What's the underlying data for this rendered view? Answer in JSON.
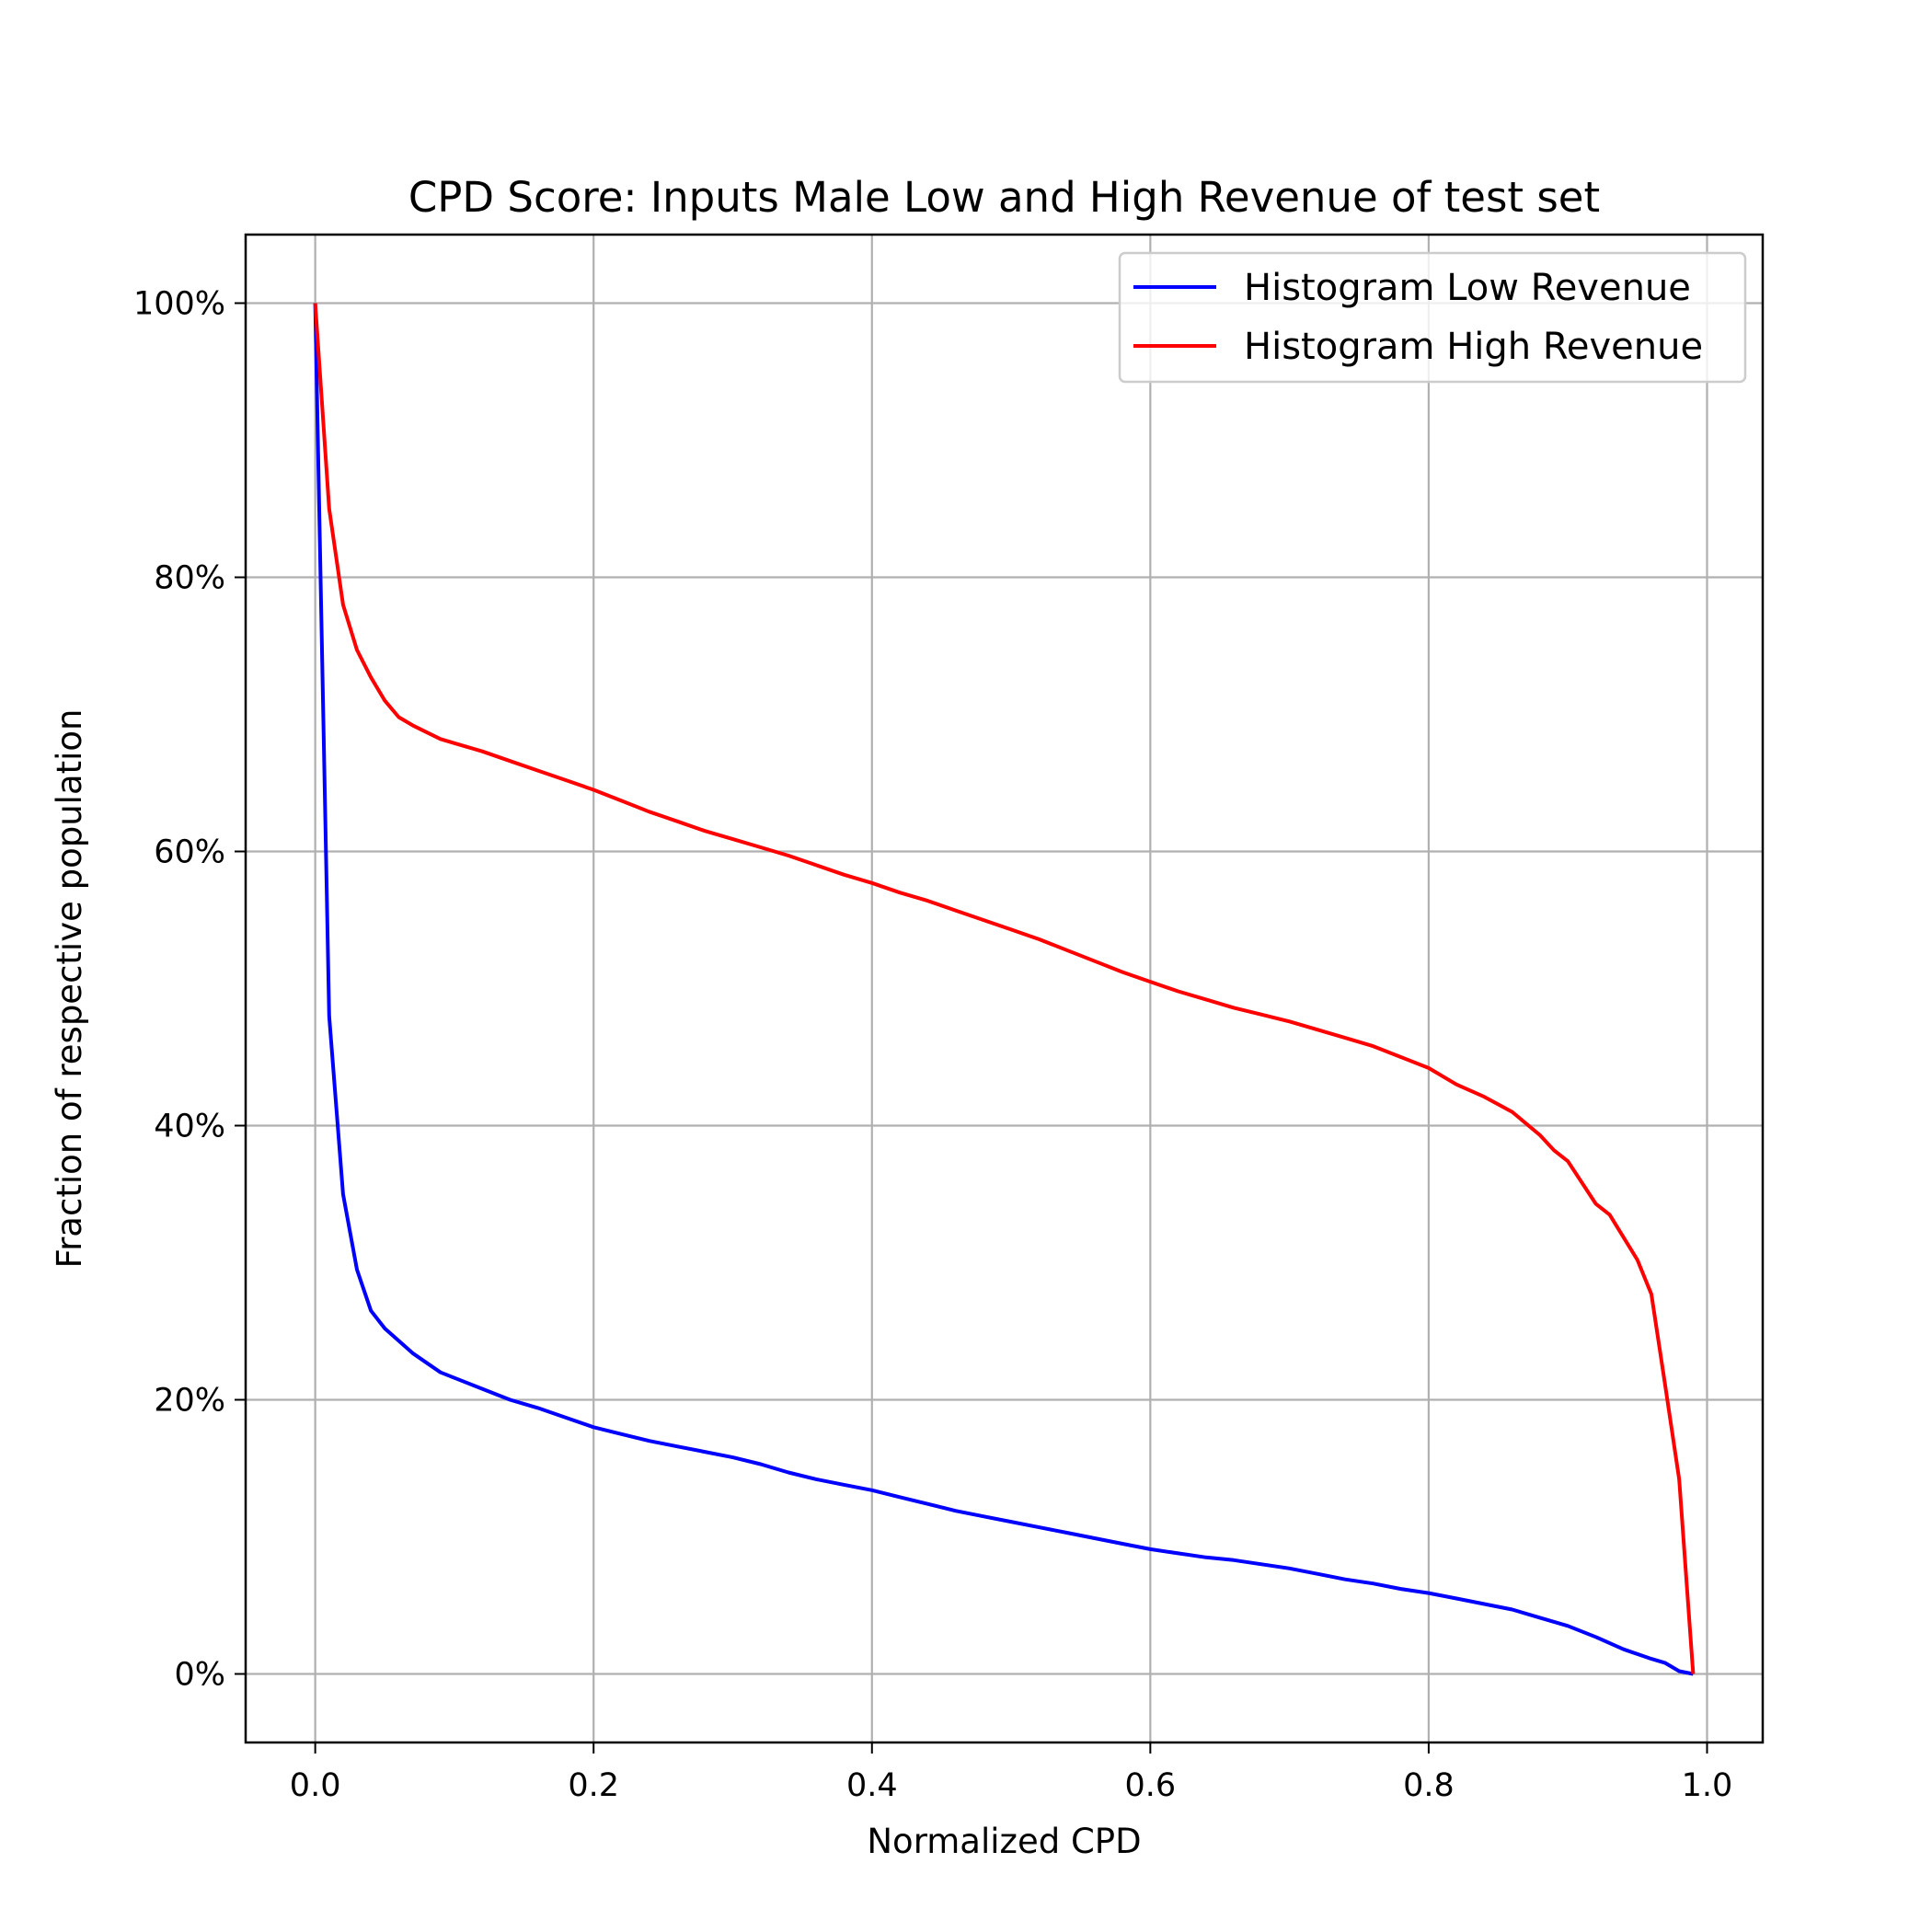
{
  "chart_data": {
    "type": "line",
    "title": "CPD Score: Inputs Male Low and High Revenue of test set",
    "xlabel": "Normalized CPD",
    "ylabel": "Fraction of respective population",
    "xlim": [
      -0.05,
      1.04
    ],
    "ylim": [
      -0.05,
      1.05
    ],
    "xticks": [
      0.0,
      0.2,
      0.4,
      0.6,
      0.8,
      1.0
    ],
    "xtick_labels": [
      "0.0",
      "0.2",
      "0.4",
      "0.6",
      "0.8",
      "1.0"
    ],
    "yticks": [
      0.0,
      0.2,
      0.4,
      0.6,
      0.8,
      1.0
    ],
    "ytick_labels": [
      "0%",
      "20%",
      "40%",
      "60%",
      "80%",
      "100%"
    ],
    "grid": true,
    "legend_position": "upper-right",
    "series": [
      {
        "name": "Histogram Low Revenue",
        "color": "#0000ff",
        "x": [
          0.0,
          0.01,
          0.02,
          0.03,
          0.04,
          0.05,
          0.06,
          0.07,
          0.08,
          0.09,
          0.1,
          0.12,
          0.14,
          0.16,
          0.18,
          0.2,
          0.22,
          0.24,
          0.26,
          0.28,
          0.3,
          0.32,
          0.34,
          0.36,
          0.38,
          0.4,
          0.42,
          0.44,
          0.46,
          0.48,
          0.5,
          0.52,
          0.54,
          0.56,
          0.58,
          0.6,
          0.62,
          0.64,
          0.66,
          0.68,
          0.7,
          0.72,
          0.74,
          0.76,
          0.78,
          0.8,
          0.82,
          0.84,
          0.86,
          0.88,
          0.9,
          0.92,
          0.94,
          0.96,
          0.97,
          0.98,
          0.99
        ],
        "y": [
          1.0,
          0.48,
          0.35,
          0.295,
          0.265,
          0.252,
          0.243,
          0.234,
          0.227,
          0.22,
          0.216,
          0.208,
          0.2,
          0.194,
          0.187,
          0.18,
          0.175,
          0.17,
          0.166,
          0.162,
          0.158,
          0.153,
          0.147,
          0.142,
          0.138,
          0.134,
          0.129,
          0.124,
          0.119,
          0.115,
          0.111,
          0.107,
          0.103,
          0.099,
          0.095,
          0.091,
          0.088,
          0.085,
          0.083,
          0.08,
          0.077,
          0.073,
          0.069,
          0.066,
          0.062,
          0.059,
          0.055,
          0.051,
          0.047,
          0.041,
          0.035,
          0.027,
          0.018,
          0.011,
          0.008,
          0.002,
          0.0
        ]
      },
      {
        "name": "Histogram High Revenue",
        "color": "#ff0000",
        "x": [
          0.0,
          0.01,
          0.02,
          0.03,
          0.04,
          0.05,
          0.06,
          0.07,
          0.08,
          0.09,
          0.1,
          0.12,
          0.14,
          0.16,
          0.18,
          0.2,
          0.22,
          0.24,
          0.26,
          0.28,
          0.3,
          0.32,
          0.34,
          0.36,
          0.38,
          0.4,
          0.42,
          0.44,
          0.46,
          0.48,
          0.5,
          0.52,
          0.54,
          0.56,
          0.58,
          0.6,
          0.62,
          0.64,
          0.66,
          0.68,
          0.7,
          0.72,
          0.74,
          0.76,
          0.78,
          0.8,
          0.82,
          0.84,
          0.86,
          0.88,
          0.89,
          0.9,
          0.92,
          0.93,
          0.95,
          0.96,
          0.97,
          0.98,
          0.99
        ],
        "y": [
          1.0,
          0.85,
          0.78,
          0.747,
          0.727,
          0.71,
          0.698,
          0.692,
          0.687,
          0.682,
          0.679,
          0.673,
          0.666,
          0.659,
          0.652,
          0.645,
          0.637,
          0.629,
          0.622,
          0.615,
          0.609,
          0.603,
          0.597,
          0.59,
          0.583,
          0.577,
          0.57,
          0.564,
          0.557,
          0.55,
          0.543,
          0.536,
          0.528,
          0.52,
          0.512,
          0.505,
          0.498,
          0.492,
          0.486,
          0.481,
          0.476,
          0.47,
          0.464,
          0.458,
          0.45,
          0.442,
          0.43,
          0.421,
          0.41,
          0.393,
          0.382,
          0.374,
          0.343,
          0.335,
          0.302,
          0.277,
          0.21,
          0.142,
          0.0
        ]
      }
    ]
  }
}
